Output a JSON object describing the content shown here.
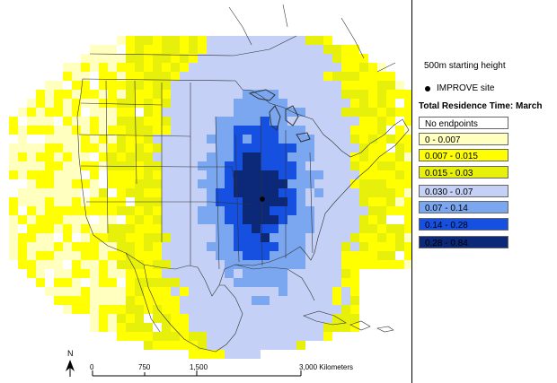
{
  "legend": {
    "height_note": "500m starting height",
    "site_label": "IMPROVE site",
    "title": "Total Residence Time: March",
    "classes": [
      {
        "label": "No endpoints",
        "color": "#ffffff"
      },
      {
        "label": "0 - 0.007",
        "color": "#ffffc0"
      },
      {
        "label": "0.007 - 0.015",
        "color": "#ffff00"
      },
      {
        "label": "0.015 - 0.03",
        "color": "#e6f00a"
      },
      {
        "label": "0.030 - 0.07",
        "color": "#c4d0f5"
      },
      {
        "label": "0.07 - 0.14",
        "color": "#7ba7f0"
      },
      {
        "label": "0.14 - 0.28",
        "color": "#1550e0"
      },
      {
        "label": "0.28 - 0.84",
        "color": "#0c2878"
      }
    ]
  },
  "scale_bar": {
    "ticks": [
      "0",
      "750",
      "1,500",
      "3,000 Kilometers"
    ],
    "north_label": "N"
  }
}
